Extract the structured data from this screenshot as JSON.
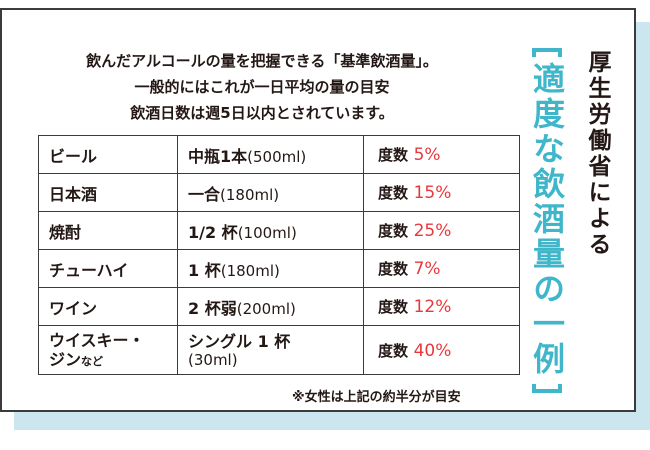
{
  "intro": {
    "line1": "飲んだアルコールの量を把握できる「基準飲酒量」。",
    "line2": "一般的にはこれが一日平均の量の目安",
    "line3": "飲酒日数は週5日以内とされています。"
  },
  "rows": [
    {
      "kind": "ビール",
      "amount": "中瓶1本",
      "volume": "(500ml)",
      "abv_label": "度数",
      "abv": "5%"
    },
    {
      "kind": "日本酒",
      "amount": "一合",
      "volume": "(180ml)",
      "abv_label": "度数",
      "abv": "15%"
    },
    {
      "kind": "焼酎",
      "amount": "1/2 杯",
      "volume": "(100ml)",
      "abv_label": "度数",
      "abv": "25%"
    },
    {
      "kind": "チューハイ",
      "amount": "1 杯",
      "volume": "(180ml)",
      "abv_label": "度数",
      "abv": "7%"
    },
    {
      "kind": "ワイン",
      "amount": "2 杯弱",
      "volume": "(200ml)",
      "abv_label": "度数",
      "abv": "12%"
    },
    {
      "kind_line1": "ウイスキー・",
      "kind_line2": "ジン",
      "kind_suffix": "など",
      "amount_line1": "シングル 1 杯",
      "amount_line2": "(30ml)",
      "abv_label": "度数",
      "abv": "40%"
    }
  ],
  "note": "※女性は上記の約半分が目安",
  "title": {
    "source": "厚生労働省による",
    "main": "適度な飲酒量の一例"
  },
  "colors": {
    "accent": "#3fb6c9",
    "abv": "#e8383d",
    "shadow": "#cce6f0"
  }
}
